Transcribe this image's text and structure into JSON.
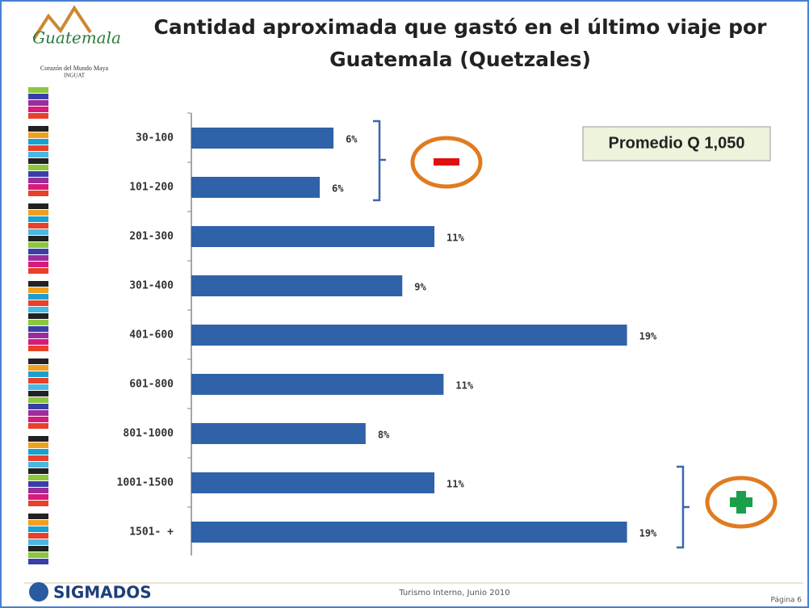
{
  "slide": {
    "logo_text": "Guatemala",
    "logo_tagline": "Corazón del Mundo Maya",
    "logo_org": "INGUAT",
    "summary": "Promedio Q 1,050",
    "footer_brand": "SIGMADOS",
    "footer_text": "Turismo Interno, Junio 2010",
    "page": "Página 6"
  },
  "chart_data": {
    "type": "hbar",
    "title": "Cantidad aproximada que gastó en el último viaje por Guatemala (Quetzales)",
    "categories": [
      "30-100",
      "101-200",
      "201-300",
      "301-400",
      "401-600",
      "601-800",
      "801-1000",
      "1001-1500",
      "1501- +"
    ],
    "values": [
      6.2,
      5.6,
      10.6,
      9.2,
      19,
      11,
      7.6,
      10.6,
      19
    ],
    "value_labels": [
      "6%",
      "6%",
      "11%",
      "9%",
      "19%",
      "11%",
      "8%",
      "11%",
      "19%"
    ],
    "color": "#2f62a8"
  }
}
